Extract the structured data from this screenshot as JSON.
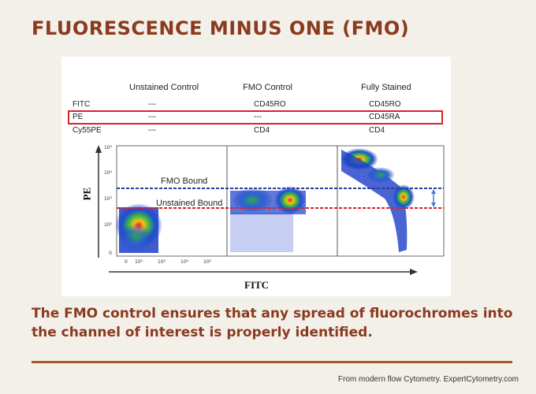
{
  "slide": {
    "title": "FLUORESCENCE MINUS ONE (FMO)",
    "caption": "The FMO control ensures that any spread of fluorochromes into the channel of interest is properly identified.",
    "credit": "From modern flow Cytometry. ExpertCytometry.com"
  },
  "table": {
    "columns": [
      "Unstained Control",
      "FMO Control",
      "Fully Stained"
    ],
    "rows": [
      {
        "channel": "FITC",
        "values": [
          "---",
          "CD45RO",
          "CD45RO"
        ]
      },
      {
        "channel": "PE",
        "values": [
          "---",
          "---",
          "CD45RA"
        ]
      },
      {
        "channel": "Cy55PE",
        "values": [
          "---",
          "CD4",
          "CD4"
        ]
      }
    ]
  },
  "plots": {
    "y_axis_label": "PE",
    "x_axis_label": "FITC",
    "fmo_bound_label": "FMO Bound",
    "unstained_bound_label": "Unstained Bound",
    "y_ticks": [
      "10⁵",
      "10⁴",
      "10³",
      "10²",
      "0"
    ],
    "x_ticks": [
      "0",
      "10²",
      "10³",
      "10⁴",
      "10⁵"
    ],
    "colors": {
      "fmo_line": "#2a3d9e",
      "unstained_line": "#d9212d",
      "accent": "#8a3a1e"
    }
  }
}
